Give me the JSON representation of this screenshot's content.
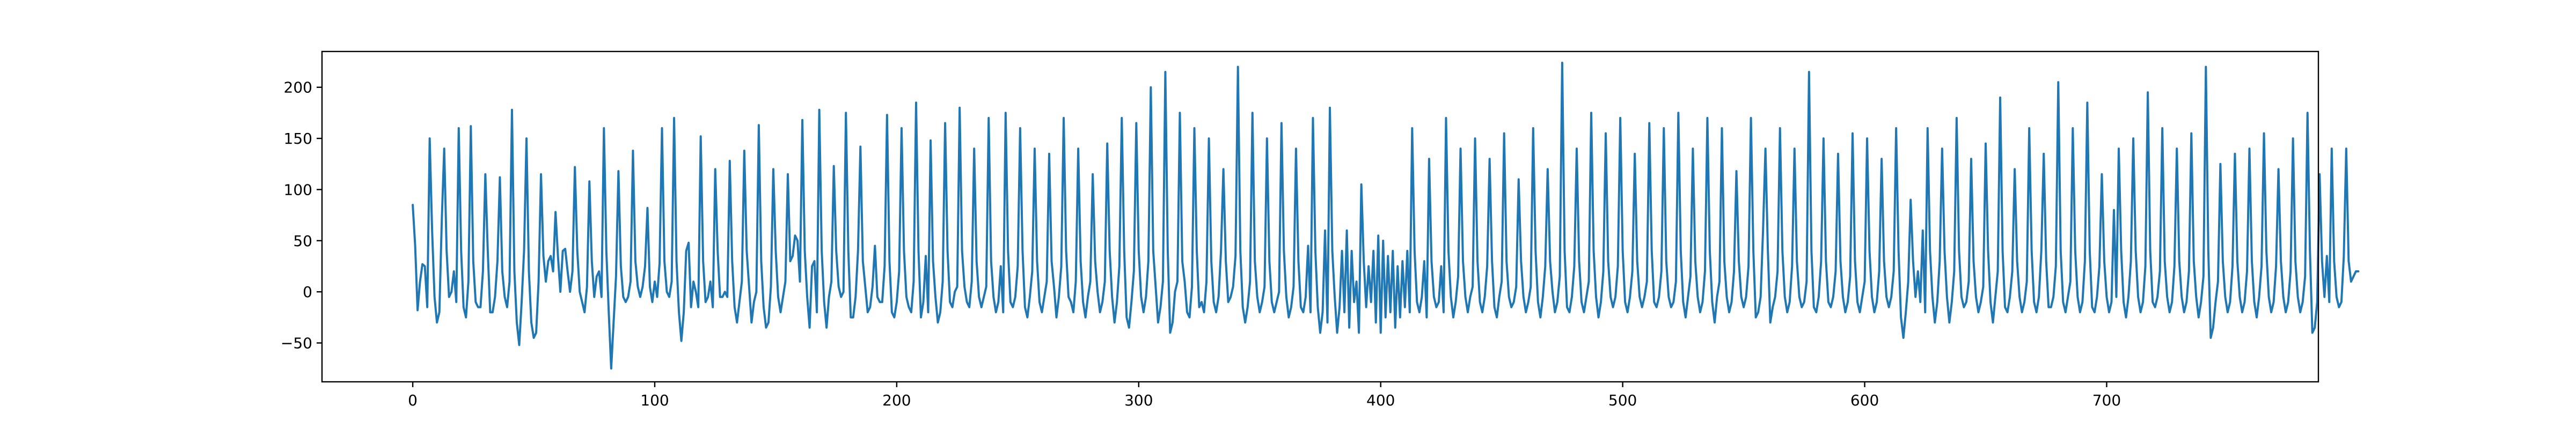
{
  "chart_data": {
    "type": "line",
    "title": "",
    "xlabel": "",
    "ylabel": "",
    "xlim": [
      -37.5,
      787.5
    ],
    "ylim": [
      -88,
      235
    ],
    "grid": false,
    "legend": "none",
    "x_ticks": [
      0,
      100,
      200,
      300,
      400,
      500,
      600,
      700
    ],
    "y_ticks": [
      -50,
      0,
      50,
      100,
      150,
      200
    ],
    "x_tick_labels": [
      "0",
      "100",
      "200",
      "300",
      "400",
      "500",
      "600",
      "700"
    ],
    "y_tick_labels": [
      "−50",
      "0",
      "50",
      "100",
      "150",
      "200"
    ],
    "series": [
      {
        "color": "#1f77b4",
        "x_start": 0,
        "x_step": 1,
        "values": [
          85,
          45,
          -18,
          10,
          27,
          25,
          -15,
          150,
          60,
          -5,
          -30,
          -20,
          70,
          140,
          40,
          -5,
          0,
          20,
          -10,
          160,
          40,
          -15,
          -25,
          10,
          162,
          30,
          -10,
          -15,
          -15,
          20,
          115,
          40,
          -20,
          -20,
          -5,
          30,
          112,
          20,
          -5,
          -15,
          10,
          178,
          20,
          -30,
          -52,
          -10,
          40,
          150,
          20,
          -30,
          -45,
          -40,
          10,
          115,
          35,
          10,
          30,
          35,
          20,
          78,
          35,
          0,
          40,
          42,
          20,
          0,
          20,
          122,
          40,
          0,
          -10,
          -20,
          5,
          108,
          30,
          -5,
          15,
          20,
          -5,
          160,
          40,
          -20,
          -75,
          -30,
          15,
          118,
          25,
          -5,
          -10,
          -5,
          10,
          138,
          30,
          5,
          -5,
          5,
          25,
          82,
          5,
          -10,
          10,
          -5,
          28,
          160,
          30,
          0,
          -5,
          10,
          170,
          30,
          -20,
          -48,
          -20,
          40,
          48,
          -15,
          10,
          0,
          -15,
          152,
          30,
          -10,
          -5,
          10,
          -15,
          120,
          40,
          -5,
          -5,
          0,
          -5,
          128,
          30,
          -15,
          -30,
          -10,
          10,
          138,
          40,
          5,
          -30,
          -10,
          0,
          163,
          30,
          -15,
          -35,
          -30,
          5,
          120,
          40,
          -5,
          -20,
          -5,
          10,
          115,
          30,
          35,
          55,
          50,
          10,
          168,
          40,
          -5,
          -35,
          25,
          30,
          -20,
          178,
          40,
          -10,
          -35,
          -5,
          10,
          123,
          40,
          5,
          -5,
          0,
          175,
          40,
          -25,
          -25,
          -5,
          40,
          142,
          30,
          5,
          -20,
          -15,
          5,
          45,
          -5,
          -10,
          -10,
          25,
          173,
          30,
          -20,
          -25,
          -10,
          20,
          160,
          40,
          -5,
          -15,
          -20,
          10,
          185,
          40,
          -25,
          -10,
          35,
          -20,
          148,
          30,
          -5,
          -30,
          -20,
          10,
          165,
          40,
          -10,
          -15,
          0,
          5,
          180,
          40,
          5,
          -10,
          -15,
          10,
          140,
          30,
          -5,
          -15,
          -5,
          5,
          170,
          30,
          -5,
          -20,
          -10,
          25,
          -20,
          175,
          40,
          -10,
          -15,
          -5,
          25,
          160,
          40,
          -15,
          -25,
          -5,
          20,
          140,
          30,
          -10,
          -20,
          -5,
          10,
          135,
          30,
          5,
          -25,
          -5,
          25,
          170,
          40,
          -5,
          -10,
          -20,
          10,
          140,
          30,
          -10,
          -25,
          -5,
          10,
          115,
          30,
          0,
          -20,
          -10,
          10,
          145,
          40,
          -5,
          -30,
          -10,
          25,
          170,
          40,
          -25,
          -35,
          -10,
          20,
          165,
          40,
          -5,
          -20,
          -5,
          30,
          200,
          40,
          5,
          -30,
          -15,
          10,
          215,
          40,
          -40,
          -30,
          0,
          10,
          175,
          30,
          10,
          -20,
          -25,
          5,
          160,
          40,
          -15,
          -10,
          -20,
          10,
          150,
          30,
          -10,
          -20,
          -5,
          40,
          120,
          30,
          -10,
          -5,
          5,
          35,
          220,
          40,
          -15,
          -30,
          -15,
          10,
          175,
          30,
          -5,
          -20,
          -10,
          5,
          150,
          30,
          -10,
          -20,
          -10,
          0,
          165,
          40,
          -5,
          -25,
          -15,
          5,
          140,
          30,
          -15,
          -20,
          -5,
          45,
          -20,
          170,
          40,
          -15,
          -40,
          -20,
          60,
          -30,
          180,
          40,
          -5,
          -40,
          -15,
          40,
          -20,
          60,
          -35,
          40,
          -10,
          10,
          -40,
          105,
          30,
          -15,
          25,
          -10,
          40,
          -30,
          55,
          -40,
          50,
          -25,
          35,
          -20,
          40,
          -35,
          25,
          -25,
          30,
          -15,
          40,
          -20,
          160,
          40,
          -10,
          -20,
          -5,
          30,
          -25,
          130,
          30,
          -5,
          -15,
          -10,
          25,
          -20,
          170,
          40,
          -5,
          -25,
          -10,
          15,
          140,
          30,
          -5,
          -20,
          -5,
          5,
          150,
          30,
          -10,
          -20,
          -5,
          25,
          130,
          30,
          -15,
          -25,
          -5,
          10,
          155,
          30,
          -5,
          -15,
          -10,
          5,
          110,
          30,
          -5,
          -20,
          -10,
          5,
          160,
          40,
          -10,
          -25,
          -5,
          25,
          120,
          30,
          0,
          -20,
          -10,
          15,
          224,
          40,
          -15,
          -20,
          -5,
          25,
          140,
          30,
          -10,
          -20,
          -5,
          10,
          175,
          40,
          -5,
          -25,
          -10,
          20,
          155,
          30,
          -5,
          -15,
          -5,
          25,
          170,
          40,
          -10,
          -20,
          -5,
          20,
          135,
          30,
          -5,
          -15,
          -5,
          10,
          165,
          40,
          -10,
          -15,
          -5,
          20,
          160,
          30,
          -5,
          -15,
          -10,
          10,
          175,
          40,
          -10,
          -25,
          -5,
          15,
          140,
          30,
          -5,
          -20,
          -10,
          20,
          170,
          40,
          -10,
          -30,
          -5,
          10,
          160,
          30,
          -5,
          -20,
          -10,
          20,
          118,
          30,
          -5,
          -15,
          -5,
          25,
          170,
          40,
          -25,
          -20,
          -5,
          60,
          140,
          40,
          -30,
          -15,
          -5,
          20,
          160,
          40,
          -5,
          -20,
          -10,
          25,
          140,
          30,
          -5,
          -15,
          -10,
          10,
          215,
          40,
          -15,
          -20,
          -5,
          30,
          150,
          30,
          -10,
          -15,
          -5,
          20,
          135,
          30,
          -5,
          -20,
          -10,
          15,
          155,
          30,
          -10,
          -20,
          -5,
          10,
          150,
          40,
          -5,
          -20,
          -10,
          20,
          130,
          30,
          -5,
          -15,
          -5,
          20,
          160,
          40,
          -25,
          -45,
          -20,
          10,
          90,
          30,
          -5,
          20,
          -10,
          60,
          -20,
          160,
          40,
          -5,
          -30,
          -10,
          30,
          140,
          40,
          -5,
          -30,
          -10,
          20,
          170,
          40,
          -5,
          -15,
          -10,
          10,
          130,
          30,
          -5,
          -20,
          -10,
          5,
          145,
          40,
          -10,
          -30,
          -5,
          20,
          190,
          40,
          -15,
          -20,
          -5,
          20,
          120,
          30,
          -5,
          -20,
          -10,
          10,
          160,
          40,
          -10,
          -20,
          -5,
          40,
          135,
          30,
          -15,
          -15,
          -5,
          25,
          205,
          40,
          -10,
          -20,
          -5,
          10,
          160,
          40,
          -5,
          -20,
          -10,
          30,
          185,
          40,
          -15,
          -20,
          -5,
          25,
          115,
          30,
          -5,
          -20,
          -10,
          80,
          -5,
          140,
          40,
          -10,
          -25,
          -5,
          30,
          150,
          40,
          -5,
          -20,
          -10,
          25,
          195,
          40,
          -10,
          -15,
          -5,
          20,
          160,
          30,
          -5,
          -20,
          -10,
          25,
          140,
          30,
          -5,
          -20,
          -10,
          20,
          155,
          30,
          -5,
          -25,
          -10,
          15,
          220,
          40,
          -45,
          -35,
          -10,
          10,
          125,
          30,
          -5,
          -20,
          -10,
          25,
          135,
          30,
          -5,
          -20,
          -10,
          20,
          140,
          30,
          -10,
          -25,
          -5,
          25,
          155,
          40,
          -5,
          -20,
          -10,
          25,
          120,
          30,
          -5,
          -20,
          -10,
          20,
          150,
          30,
          -5,
          -20,
          -10,
          15,
          175,
          40,
          -40,
          -35,
          -10,
          115,
          30,
          -5,
          35,
          -10,
          140,
          30,
          -5,
          -15,
          -10,
          35,
          140,
          30,
          10,
          15,
          20,
          20
        ]
      }
    ]
  }
}
